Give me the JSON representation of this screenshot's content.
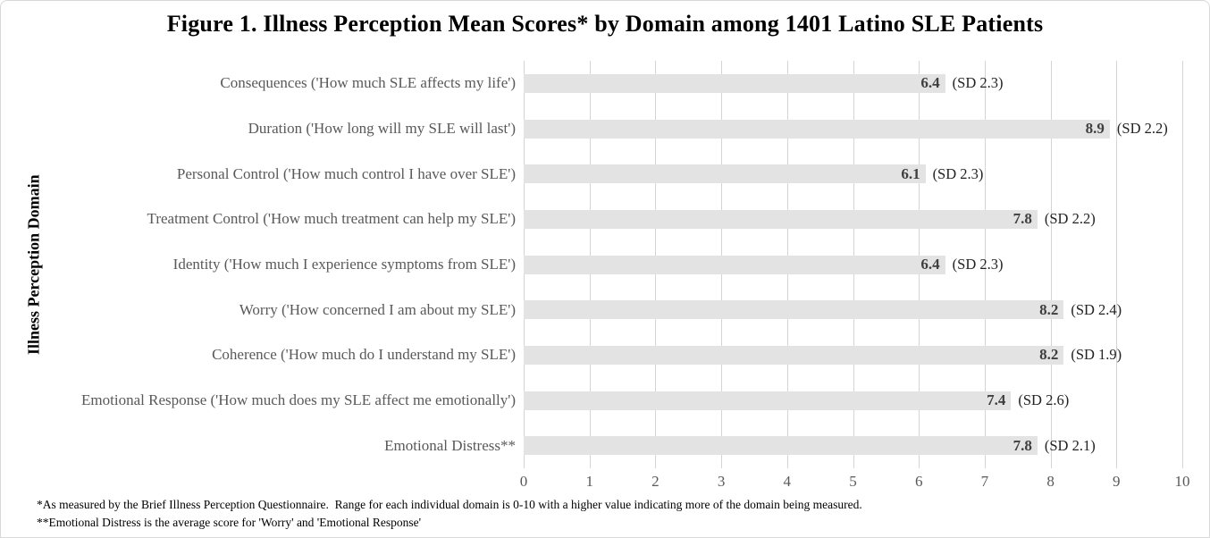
{
  "figure": {
    "title": "Figure 1. Illness Perception Mean Scores* by Domain among 1401 Latino SLE Patients",
    "y_axis_label": "Illness Perception Domain",
    "footnotes": [
      "*As measured by the Brief Illness Perception Questionnaire.  Range for each individual domain is 0-10 with a higher value indicating more of the domain being measured.",
      "**Emotional Distress is the average score for 'Worry' and 'Emotional Response'"
    ]
  },
  "chart_data": {
    "type": "bar",
    "orientation": "horizontal",
    "title": "Figure 1. Illness Perception Mean Scores* by Domain among 1401 Latino SLE Patients",
    "xlabel": "",
    "ylabel": "Illness Perception Domain",
    "xlim": [
      0,
      10
    ],
    "x_ticks": [
      "0",
      "1",
      "2",
      "3",
      "4",
      "5",
      "6",
      "7",
      "8",
      "9",
      "10"
    ],
    "grid": "vertical-gridlines-on",
    "legend": "none",
    "bar_color": "#e3e3e3",
    "gridline_color": "#d4d4d4",
    "categories": [
      "Consequences ('How much SLE affects my life')",
      "Duration ('How long will my SLE will last')",
      "Personal Control ('How much control I have over SLE')",
      "Treatment Control ('How much treatment can help my SLE')",
      "Identity ('How much I experience symptoms from SLE')",
      "Worry ('How concerned I am about my SLE')",
      "Coherence ('How much do I understand my SLE')",
      "Emotional Response ('How much does my SLE affect me emotionally')",
      "Emotional Distress**"
    ],
    "values": [
      6.4,
      8.9,
      6.1,
      7.8,
      6.4,
      8.2,
      8.2,
      7.4,
      7.8
    ],
    "value_labels": [
      "6.4",
      "8.9",
      "6.1",
      "7.8",
      "6.4",
      "8.2",
      "8.2",
      "7.4",
      "7.8"
    ],
    "sd": [
      2.3,
      2.2,
      2.3,
      2.2,
      2.3,
      2.4,
      1.9,
      2.6,
      2.1
    ],
    "sd_labels": [
      "(SD 2.3)",
      "(SD 2.2)",
      "(SD 2.3)",
      "(SD 2.2)",
      "(SD 2.3)",
      "(SD 2.4)",
      "(SD 1.9)",
      "(SD 2.6)",
      "(SD 2.1)"
    ]
  }
}
